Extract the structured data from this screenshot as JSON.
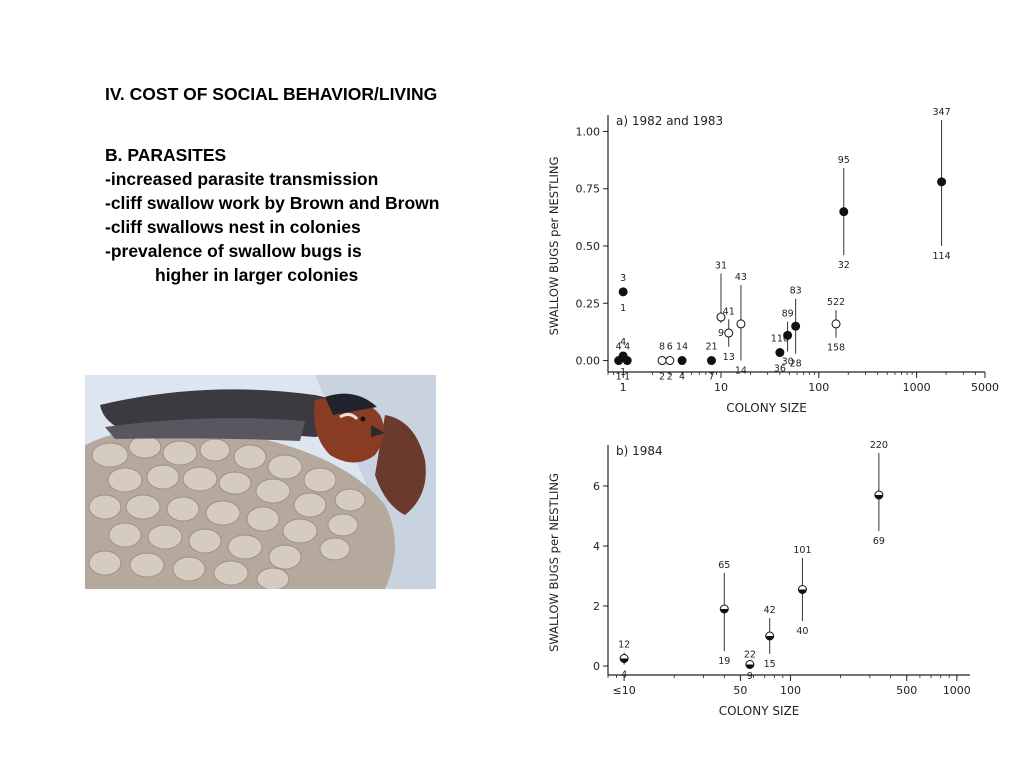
{
  "slide": {
    "title": "IV. COST OF SOCIAL BEHAVIOR/LIVING",
    "lines": [
      "B. PARASITES",
      "-increased parasite transmission",
      "-cliff swallow work by Brown and Brown",
      "-cliff swallows nest in colonies",
      "-prevalence of swallow bugs is",
      "higher in larger colonies"
    ]
  },
  "photo": {
    "colors": {
      "sky": "#dde6f0",
      "mud": "#b5a99e",
      "mud_light": "#d6cbc1",
      "wing": "#3b3a40",
      "chestnut": "#8a3b24",
      "cap": "#20232c"
    }
  },
  "chart_data": [
    {
      "type": "scatter",
      "title": "a) 1982 and 1983",
      "xlabel": "COLONY SIZE",
      "ylabel": "SWALLOW BUGS per NESTLING",
      "xscale": "log",
      "xlim": [
        0.7,
        5000
      ],
      "ylim": [
        -0.05,
        1.05
      ],
      "xticks": [
        1,
        10,
        100,
        1000,
        5000
      ],
      "xticklabels": [
        "1",
        "10",
        "100",
        "1000",
        "5000"
      ],
      "yticks": [
        0,
        0.25,
        0.5,
        0.75,
        1.0
      ],
      "yticklabels": [
        "0.00",
        "0.25",
        "0.50",
        "0.75",
        "1.00"
      ],
      "grid": false,
      "points": [
        {
          "x": 0.9,
          "y": 0.0,
          "filled": true,
          "n": "4",
          "bottom": "1"
        },
        {
          "x": 1.0,
          "y": 0.02,
          "filled": true,
          "n": "4",
          "bottom": "1"
        },
        {
          "x": 1.1,
          "y": 0.0,
          "filled": true,
          "n": "4",
          "bottom": "1"
        },
        {
          "x": 1.0,
          "y": 0.3,
          "filled": true,
          "n": "3",
          "bottom": "1"
        },
        {
          "x": 2.5,
          "y": 0.0,
          "filled": false,
          "n": "8",
          "bottom": "2"
        },
        {
          "x": 3.0,
          "y": 0.0,
          "filled": false,
          "n": "6",
          "bottom": "2"
        },
        {
          "x": 4.0,
          "y": 0.0,
          "filled": true,
          "n": "14",
          "bottom": "4"
        },
        {
          "x": 8.0,
          "y": 0.0,
          "filled": true,
          "n": "21",
          "bottom": "7"
        },
        {
          "x": 10.0,
          "y": 0.19,
          "filled": false,
          "n": "31",
          "bottom": "9",
          "top": 0.38
        },
        {
          "x": 12.0,
          "y": 0.12,
          "filled": false,
          "n": "41",
          "bottom": "13",
          "top": 0.18,
          "low": 0.06
        },
        {
          "x": 16.0,
          "y": 0.16,
          "filled": false,
          "n": "43",
          "bottom": "14",
          "top": 0.33,
          "low": 0.0
        },
        {
          "x": 40.0,
          "y": 0.035,
          "filled": true,
          "n": "110",
          "bottom": "36"
        },
        {
          "x": 48.0,
          "y": 0.11,
          "filled": true,
          "n": "89",
          "bottom": "30",
          "top": 0.17,
          "low": 0.04
        },
        {
          "x": 58.0,
          "y": 0.15,
          "filled": true,
          "n": "83",
          "bottom": "28",
          "top": 0.27,
          "low": 0.03
        },
        {
          "x": 150.0,
          "y": 0.16,
          "filled": false,
          "n": "522",
          "bottom": "158",
          "top": 0.22,
          "low": 0.1
        },
        {
          "x": 180.0,
          "y": 0.65,
          "filled": true,
          "n": "95",
          "bottom": "32",
          "top": 0.84,
          "low": 0.46
        },
        {
          "x": 1800.0,
          "y": 0.78,
          "filled": true,
          "n": "347",
          "bottom": "114",
          "top": 1.05,
          "low": 0.5
        }
      ]
    },
    {
      "type": "scatter",
      "title": "b) 1984",
      "xlabel": "COLONY SIZE",
      "ylabel": "SWALLOW BUGS per NESTLING",
      "xscale": "log",
      "xlim": [
        8,
        1200
      ],
      "ylim": [
        -0.3,
        7.2
      ],
      "xticks": [
        10,
        50,
        100,
        500,
        1000
      ],
      "xticklabels": [
        "≤10",
        "50",
        "100",
        "500",
        "1000"
      ],
      "yticks": [
        0,
        2,
        4,
        6
      ],
      "yticklabels": [
        "0",
        "2",
        "4",
        "6"
      ],
      "grid": false,
      "points": [
        {
          "x": 10,
          "y": 0.25,
          "n": "12",
          "bottom": "4",
          "top": 0.45,
          "low": 0.05
        },
        {
          "x": 40,
          "y": 1.9,
          "n": "65",
          "bottom": "19",
          "top": 3.1,
          "low": 0.5
        },
        {
          "x": 57,
          "y": 0.05,
          "n": "22",
          "bottom": "9",
          "top": 0.12,
          "low": 0.0
        },
        {
          "x": 75,
          "y": 1.0,
          "n": "42",
          "bottom": "15",
          "top": 1.6,
          "low": 0.4
        },
        {
          "x": 118,
          "y": 2.55,
          "n": "101",
          "bottom": "40",
          "top": 3.6,
          "low": 1.5
        },
        {
          "x": 340,
          "y": 5.7,
          "n": "220",
          "bottom": "69",
          "top": 7.1,
          "low": 4.5
        }
      ]
    }
  ]
}
